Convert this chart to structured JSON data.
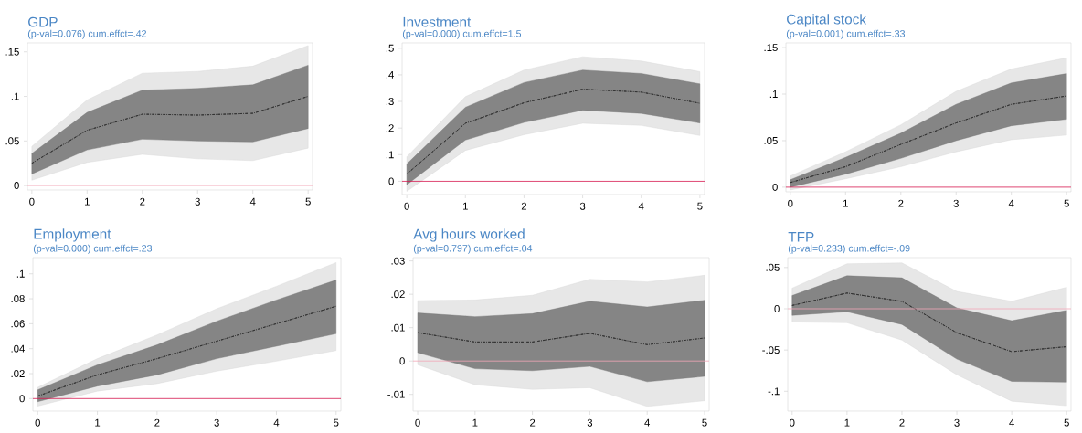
{
  "chart_data": [
    {
      "type": "line",
      "title": "GDP",
      "subtitle": "(p-val=0.076) cum.effct=.42",
      "x": [
        0,
        1,
        2,
        3,
        4,
        5
      ],
      "xlim": [
        -0.08,
        5.08
      ],
      "xticks": [
        0,
        1,
        2,
        3,
        4,
        5
      ],
      "ylim": [
        -0.005,
        0.16
      ],
      "yticks": [
        0,
        {
          "value": 0.05,
          "label": ".05"
        },
        {
          "value": 0.1,
          "label": ".1"
        },
        {
          "value": 0.15,
          "label": ".15"
        }
      ],
      "line_style": "dashed",
      "series": [
        {
          "color": "#333333",
          "values": [
            0.025,
            0.062,
            0.08,
            0.079,
            0.081,
            0.1
          ],
          "lower": [
            0.006,
            0.026,
            0.035,
            0.03,
            0.028,
            0.042
          ],
          "upper": [
            0.044,
            0.096,
            0.126,
            0.128,
            0.134,
            0.157
          ]
        },
        {
          "color": "#333333",
          "values": [
            0.025,
            0.062,
            0.08,
            0.079,
            0.081,
            0.1
          ],
          "lower": [
            0.013,
            0.04,
            0.052,
            0.05,
            0.049,
            0.064
          ],
          "upper": [
            0.036,
            0.082,
            0.107,
            0.109,
            0.113,
            0.135
          ]
        }
      ],
      "ref_lines": [
        {
          "axis": "y",
          "value": 0,
          "color": "#f2a7b8"
        }
      ]
    },
    {
      "type": "line",
      "title": "Investment",
      "subtitle": "(p-val=0.000) cum.effct=1.5",
      "x": [
        0,
        1,
        2,
        3,
        4,
        5
      ],
      "xlim": [
        -0.08,
        5.08
      ],
      "xticks": [
        0,
        1,
        2,
        3,
        4,
        5
      ],
      "ylim": [
        -0.05,
        0.52
      ],
      "yticks": [
        0,
        {
          "value": 0.1,
          "label": ".1"
        },
        {
          "value": 0.2,
          "label": ".2"
        },
        {
          "value": 0.3,
          "label": ".3"
        },
        {
          "value": 0.4,
          "label": ".4"
        },
        {
          "value": 0.5,
          "label": ".5"
        }
      ],
      "line_style": "dashed",
      "series": [
        {
          "color": "#333333",
          "values": [
            0.027,
            0.218,
            0.295,
            0.346,
            0.335,
            0.293
          ],
          "lower": [
            -0.038,
            0.116,
            0.175,
            0.218,
            0.21,
            0.172
          ],
          "upper": [
            0.092,
            0.318,
            0.418,
            0.468,
            0.452,
            0.412
          ]
        },
        {
          "color": "#333333",
          "values": [
            0.027,
            0.218,
            0.295,
            0.346,
            0.335,
            0.293
          ],
          "lower": [
            -0.013,
            0.155,
            0.221,
            0.267,
            0.255,
            0.219
          ],
          "upper": [
            0.065,
            0.278,
            0.371,
            0.418,
            0.405,
            0.366
          ]
        }
      ],
      "ref_lines": [
        {
          "axis": "y",
          "value": 0,
          "color": "#d6184f"
        }
      ]
    },
    {
      "type": "line",
      "title": "Capital stock",
      "subtitle": "(p-val=0.001) cum.effct=.33",
      "x": [
        0,
        1,
        2,
        3,
        4,
        5
      ],
      "xlim": [
        -0.08,
        5.08
      ],
      "xticks": [
        0,
        1,
        2,
        3,
        4,
        5
      ],
      "ylim": [
        -0.005,
        0.155
      ],
      "yticks": [
        0,
        {
          "value": 0.05,
          "label": ".05"
        },
        {
          "value": 0.1,
          "label": ".1"
        },
        {
          "value": 0.15,
          "label": ".15"
        }
      ],
      "line_style": "dashed",
      "series": [
        {
          "color": "#333333",
          "values": [
            0.005,
            0.022,
            0.046,
            0.069,
            0.089,
            0.098
          ],
          "lower": [
            -0.003,
            0.009,
            0.022,
            0.038,
            0.051,
            0.056
          ],
          "upper": [
            0.012,
            0.038,
            0.067,
            0.103,
            0.127,
            0.139
          ]
        },
        {
          "color": "#333333",
          "values": [
            0.005,
            0.022,
            0.046,
            0.069,
            0.089,
            0.098
          ],
          "lower": [
            0.0,
            0.014,
            0.031,
            0.05,
            0.066,
            0.073
          ],
          "upper": [
            0.008,
            0.032,
            0.058,
            0.089,
            0.112,
            0.122
          ]
        }
      ],
      "ref_lines": [
        {
          "axis": "y",
          "value": 0,
          "color": "#d6184f"
        }
      ]
    },
    {
      "type": "line",
      "title": "Employment",
      "subtitle": "(p-val=0.000) cum.effct=.23",
      "x": [
        0,
        1,
        2,
        3,
        4,
        5
      ],
      "xlim": [
        -0.08,
        5.08
      ],
      "xticks": [
        0,
        1,
        2,
        3,
        4,
        5
      ],
      "ylim": [
        -0.01,
        0.113
      ],
      "yticks": [
        0,
        {
          "value": 0.02,
          "label": ".02"
        },
        {
          "value": 0.04,
          "label": ".04"
        },
        {
          "value": 0.06,
          "label": ".06"
        },
        {
          "value": 0.08,
          "label": ".08"
        },
        {
          "value": 0.1,
          "label": ".1"
        }
      ],
      "line_style": "dashed",
      "series": [
        {
          "color": "#333333",
          "values": [
            0.002,
            0.019,
            0.032,
            0.046,
            0.06,
            0.074
          ],
          "lower": [
            -0.006,
            0.006,
            0.012,
            0.022,
            0.03,
            0.0385
          ],
          "upper": [
            0.009,
            0.032,
            0.051,
            0.072,
            0.09,
            0.109
          ]
        },
        {
          "color": "#333333",
          "values": [
            0.002,
            0.019,
            0.032,
            0.046,
            0.06,
            0.074
          ],
          "lower": [
            -0.0025,
            0.01,
            0.019,
            0.032,
            0.042,
            0.052
          ],
          "upper": [
            0.007,
            0.027,
            0.043,
            0.062,
            0.079,
            0.095
          ]
        }
      ],
      "ref_lines": [
        {
          "axis": "y",
          "value": 0,
          "color": "#d6184f"
        }
      ]
    },
    {
      "type": "line",
      "title": "Avg hours worked",
      "subtitle": "(p-val=0.797) cum.effct=.04",
      "x": [
        0,
        1,
        2,
        3,
        4,
        5
      ],
      "xlim": [
        -0.08,
        5.08
      ],
      "xticks": [
        0,
        1,
        2,
        3,
        4,
        5
      ],
      "ylim": [
        -0.015,
        0.031
      ],
      "yticks": [
        {
          "value": -0.01,
          "label": "-.01"
        },
        0,
        {
          "value": 0.01,
          "label": ".01"
        },
        {
          "value": 0.02,
          "label": ".02"
        },
        {
          "value": 0.03,
          "label": ".03"
        }
      ],
      "line_style": "dashed",
      "series": [
        {
          "color": "#333333",
          "values": [
            0.0085,
            0.0057,
            0.0057,
            0.0083,
            0.0049,
            0.0069
          ],
          "lower": [
            -0.0011,
            -0.0071,
            -0.0085,
            -0.008,
            -0.0136,
            -0.0119
          ],
          "upper": [
            0.0181,
            0.0183,
            0.0197,
            0.0245,
            0.0237,
            0.0257
          ]
        },
        {
          "color": "#333333",
          "values": [
            0.0085,
            0.0057,
            0.0057,
            0.0083,
            0.0049,
            0.0069
          ],
          "lower": [
            0.0025,
            -0.0023,
            -0.0029,
            -0.0016,
            -0.0062,
            -0.0046
          ],
          "upper": [
            0.0144,
            0.0133,
            0.0142,
            0.0179,
            0.0162,
            0.0182
          ]
        }
      ],
      "ref_lines": [
        {
          "axis": "y",
          "value": 0,
          "color": "#f2a7b8"
        }
      ]
    },
    {
      "type": "line",
      "title": "TFP",
      "subtitle": "(p-val=0.233) cum.effct=-.09",
      "x": [
        0,
        1,
        2,
        3,
        4,
        5
      ],
      "xlim": [
        -0.08,
        5.08
      ],
      "xticks": [
        0,
        1,
        2,
        3,
        4,
        5
      ],
      "ylim": [
        -0.124,
        0.062
      ],
      "yticks": [
        {
          "value": -0.1,
          "label": "-.1"
        },
        {
          "value": -0.05,
          "label": "-.05"
        },
        0,
        {
          "value": 0.05,
          "label": ".05"
        }
      ],
      "line_style": "dashed",
      "series": [
        {
          "color": "#333333",
          "values": [
            0.004,
            0.019,
            0.009,
            -0.029,
            -0.052,
            -0.046
          ],
          "lower": [
            -0.016,
            -0.017,
            -0.038,
            -0.08,
            -0.112,
            -0.1175
          ],
          "upper": [
            0.025,
            0.0545,
            0.0556,
            0.021,
            0.009,
            0.026
          ]
        },
        {
          "color": "#333333",
          "values": [
            0.004,
            0.019,
            0.009,
            -0.029,
            -0.052,
            -0.046
          ],
          "lower": [
            -0.008,
            -0.0036,
            -0.019,
            -0.061,
            -0.088,
            -0.089
          ],
          "upper": [
            0.016,
            0.04,
            0.0375,
            0.001,
            -0.0145,
            -0.002
          ]
        }
      ],
      "ref_lines": [
        {
          "axis": "y",
          "value": 0,
          "color": "#f2a7b8"
        }
      ]
    }
  ]
}
